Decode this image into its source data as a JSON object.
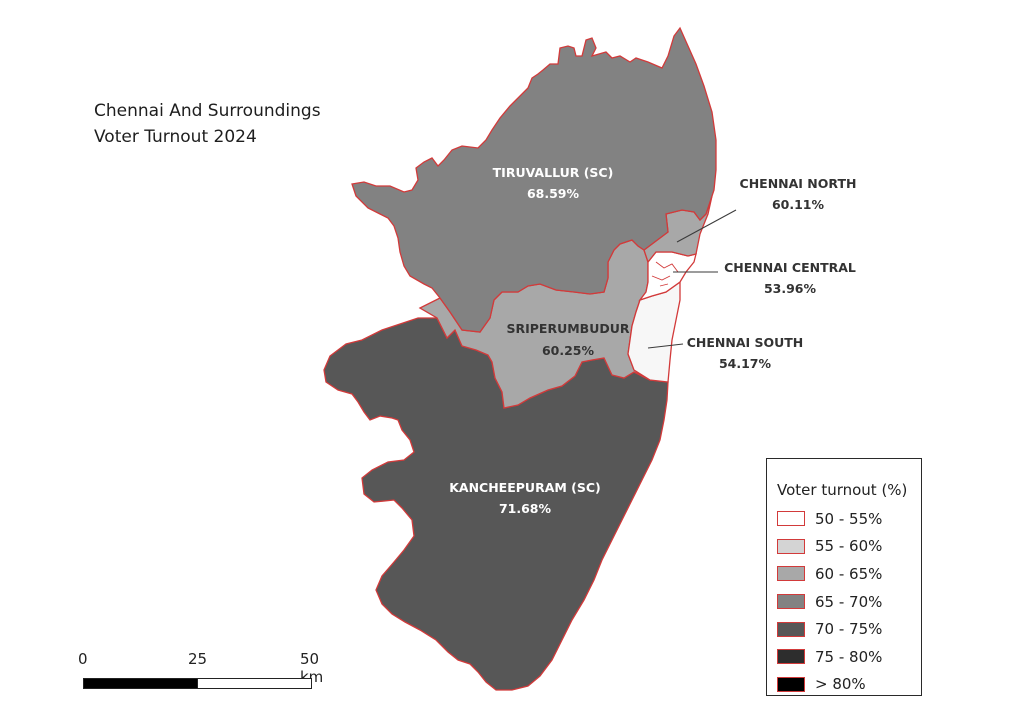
{
  "map": {
    "title_line1": "Chennai And Surroundings",
    "title_line2": "Voter Turnout 2024",
    "regions": [
      {
        "id": "tiruvallur",
        "name": "TIRUVALLUR (SC)",
        "value": "68.59%",
        "fill": "#828282"
      },
      {
        "id": "chennai-north",
        "name": "CHENNAI NORTH",
        "value": "60.11%",
        "fill": "#a8a8a8"
      },
      {
        "id": "chennai-central",
        "name": "CHENNAI CENTRAL",
        "value": "53.96%",
        "fill": "#ffffff"
      },
      {
        "id": "chennai-south",
        "name": "CHENNAI SOUTH",
        "value": "54.17%",
        "fill": "#f7f7f7"
      },
      {
        "id": "sriperumbudur",
        "name": "SRIPERUMBUDUR",
        "value": "60.25%",
        "fill": "#a8a8a8"
      },
      {
        "id": "kancheepuram",
        "name": "KANCHEEPURAM (SC)",
        "value": "71.68%",
        "fill": "#575757"
      }
    ],
    "border_color": "#d23a3a"
  },
  "legend": {
    "title": "Voter turnout (%)",
    "items": [
      {
        "label": "50 - 55%",
        "color": "#ffffff"
      },
      {
        "label": "55 - 60%",
        "color": "#d4d4d4"
      },
      {
        "label": "60 - 65%",
        "color": "#a8a8a8"
      },
      {
        "label": "65 - 70%",
        "color": "#828282"
      },
      {
        "label": "70 - 75%",
        "color": "#575757"
      },
      {
        "label": "75 - 80%",
        "color": "#2d2d2d"
      },
      {
        "label": "> 80%",
        "color": "#000000"
      }
    ]
  },
  "scale": {
    "ticks": [
      "0",
      "25",
      "50 km"
    ]
  }
}
